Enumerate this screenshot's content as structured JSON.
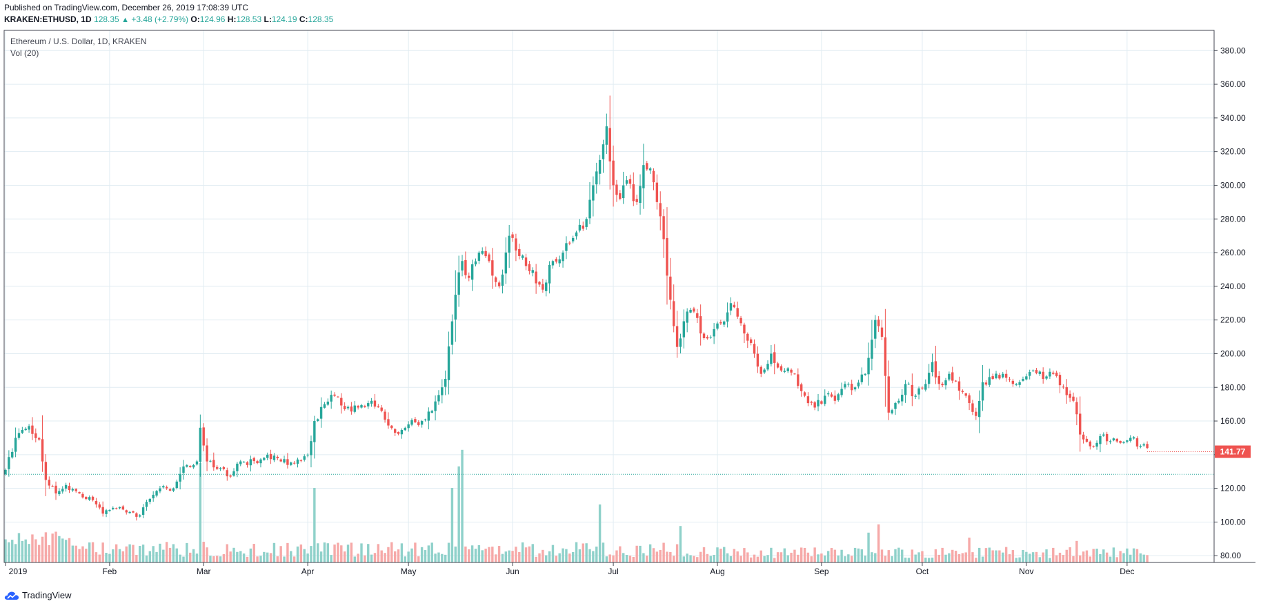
{
  "header": {
    "published": "Published on TradingView.com, December 26, 2019 17:08:39 UTC",
    "symbol": "KRAKEN:ETHUSD, 1D",
    "last": "128.35",
    "change": "+3.48 (+2.79%)",
    "open_label": "O:",
    "open": "124.96",
    "high_label": "H:",
    "high": "128.53",
    "low_label": "L:",
    "low": "124.19",
    "close_label": "C:",
    "close": "128.35"
  },
  "legend": {
    "title": "Ethereum / U.S. Dollar, 1D, KRAKEN",
    "volume": "Vol (20)"
  },
  "footer": {
    "brand": "TradingView"
  },
  "colors": {
    "up": "#26a69a",
    "down": "#ef5350",
    "up_volume": "#8fd1ca",
    "down_volume": "#f6a9a8",
    "grid": "#e1ecf2",
    "price_label_bg": "#ef5350",
    "dotted_line": "#26a69a"
  },
  "chart_data": {
    "type": "candlestick",
    "symbol": "ETHUSD",
    "interval": "1D",
    "y_ticks": [
      "80.00",
      "100.00",
      "120.00",
      "140.00",
      "160.00",
      "180.00",
      "200.00",
      "220.00",
      "240.00",
      "260.00",
      "280.00",
      "300.00",
      "320.00",
      "340.00",
      "360.00",
      "380.00"
    ],
    "ylim": [
      76,
      392
    ],
    "x_ticks": [
      "2019",
      "Feb",
      "Mar",
      "Apr",
      "May",
      "Jun",
      "Jul",
      "Aug",
      "Sep",
      "Oct",
      "Nov",
      "Dec"
    ],
    "x_tick_days": [
      0,
      31,
      59,
      90,
      120,
      151,
      181,
      212,
      243,
      273,
      304,
      334
    ],
    "x_start_date": "2019-01-01",
    "x_end_date": "2019-12-26",
    "last_price_label": "141.77",
    "last_price": 141.77,
    "reference_price": 128.35,
    "close_anchors": [
      [
        0,
        131
      ],
      [
        3,
        150
      ],
      [
        7,
        157
      ],
      [
        10,
        149
      ],
      [
        12,
        125
      ],
      [
        15,
        117
      ],
      [
        18,
        122
      ],
      [
        22,
        117
      ],
      [
        26,
        113
      ],
      [
        29,
        105
      ],
      [
        33,
        108
      ],
      [
        37,
        106
      ],
      [
        40,
        104
      ],
      [
        42,
        112
      ],
      [
        46,
        120
      ],
      [
        50,
        120
      ],
      [
        53,
        133
      ],
      [
        57,
        136
      ],
      [
        58,
        156
      ],
      [
        60,
        136
      ],
      [
        64,
        132
      ],
      [
        67,
        127
      ],
      [
        70,
        136
      ],
      [
        75,
        135
      ],
      [
        78,
        140
      ],
      [
        82,
        136
      ],
      [
        86,
        135
      ],
      [
        90,
        140
      ],
      [
        92,
        160
      ],
      [
        95,
        170
      ],
      [
        98,
        175
      ],
      [
        101,
        167
      ],
      [
        105,
        168
      ],
      [
        109,
        172
      ],
      [
        112,
        166
      ],
      [
        116,
        153
      ],
      [
        120,
        158
      ],
      [
        124,
        160
      ],
      [
        127,
        166
      ],
      [
        131,
        185
      ],
      [
        134,
        235
      ],
      [
        136,
        255
      ],
      [
        138,
        245
      ],
      [
        141,
        260
      ],
      [
        144,
        255
      ],
      [
        147,
        240
      ],
      [
        150,
        270
      ],
      [
        153,
        258
      ],
      [
        156,
        249
      ],
      [
        160,
        238
      ],
      [
        163,
        255
      ],
      [
        166,
        260
      ],
      [
        170,
        272
      ],
      [
        173,
        280
      ],
      [
        175,
        300
      ],
      [
        177,
        315
      ],
      [
        179,
        335
      ],
      [
        181,
        300
      ],
      [
        183,
        292
      ],
      [
        185,
        303
      ],
      [
        188,
        290
      ],
      [
        190,
        312
      ],
      [
        192,
        310
      ],
      [
        194,
        290
      ],
      [
        196,
        268
      ],
      [
        198,
        232
      ],
      [
        200,
        204
      ],
      [
        203,
        225
      ],
      [
        205,
        225
      ],
      [
        207,
        212
      ],
      [
        210,
        210
      ],
      [
        213,
        218
      ],
      [
        216,
        230
      ],
      [
        218,
        222
      ],
      [
        220,
        212
      ],
      [
        223,
        200
      ],
      [
        225,
        188
      ],
      [
        228,
        200
      ],
      [
        231,
        190
      ],
      [
        235,
        188
      ],
      [
        238,
        175
      ],
      [
        241,
        168
      ],
      [
        244,
        175
      ],
      [
        247,
        172
      ],
      [
        250,
        182
      ],
      [
        253,
        180
      ],
      [
        256,
        188
      ],
      [
        259,
        220
      ],
      [
        261,
        210
      ],
      [
        263,
        165
      ],
      [
        266,
        172
      ],
      [
        268,
        182
      ],
      [
        271,
        175
      ],
      [
        274,
        182
      ],
      [
        276,
        195
      ],
      [
        278,
        182
      ],
      [
        281,
        188
      ],
      [
        284,
        178
      ],
      [
        286,
        175
      ],
      [
        289,
        163
      ],
      [
        291,
        183
      ],
      [
        294,
        185
      ],
      [
        297,
        188
      ],
      [
        300,
        182
      ],
      [
        303,
        185
      ],
      [
        306,
        190
      ],
      [
        309,
        185
      ],
      [
        312,
        188
      ],
      [
        315,
        180
      ],
      [
        318,
        172
      ],
      [
        320,
        152
      ],
      [
        323,
        145
      ],
      [
        325,
        147
      ],
      [
        327,
        152
      ],
      [
        329,
        148
      ],
      [
        332,
        147
      ],
      [
        335,
        150
      ],
      [
        338,
        145
      ],
      [
        340,
        144
      ]
    ],
    "volume_spikes": [
      [
        58,
        60
      ],
      [
        92,
        45
      ],
      [
        133,
        45
      ],
      [
        135,
        58
      ],
      [
        136,
        68
      ],
      [
        177,
        35
      ],
      [
        201,
        22
      ],
      [
        257,
        18
      ],
      [
        260,
        23
      ],
      [
        287,
        15
      ],
      [
        319,
        13
      ]
    ],
    "notes": "Daily candles reconstructed from visual trend; volume bars shown as separate pane at bottom of plot area"
  }
}
